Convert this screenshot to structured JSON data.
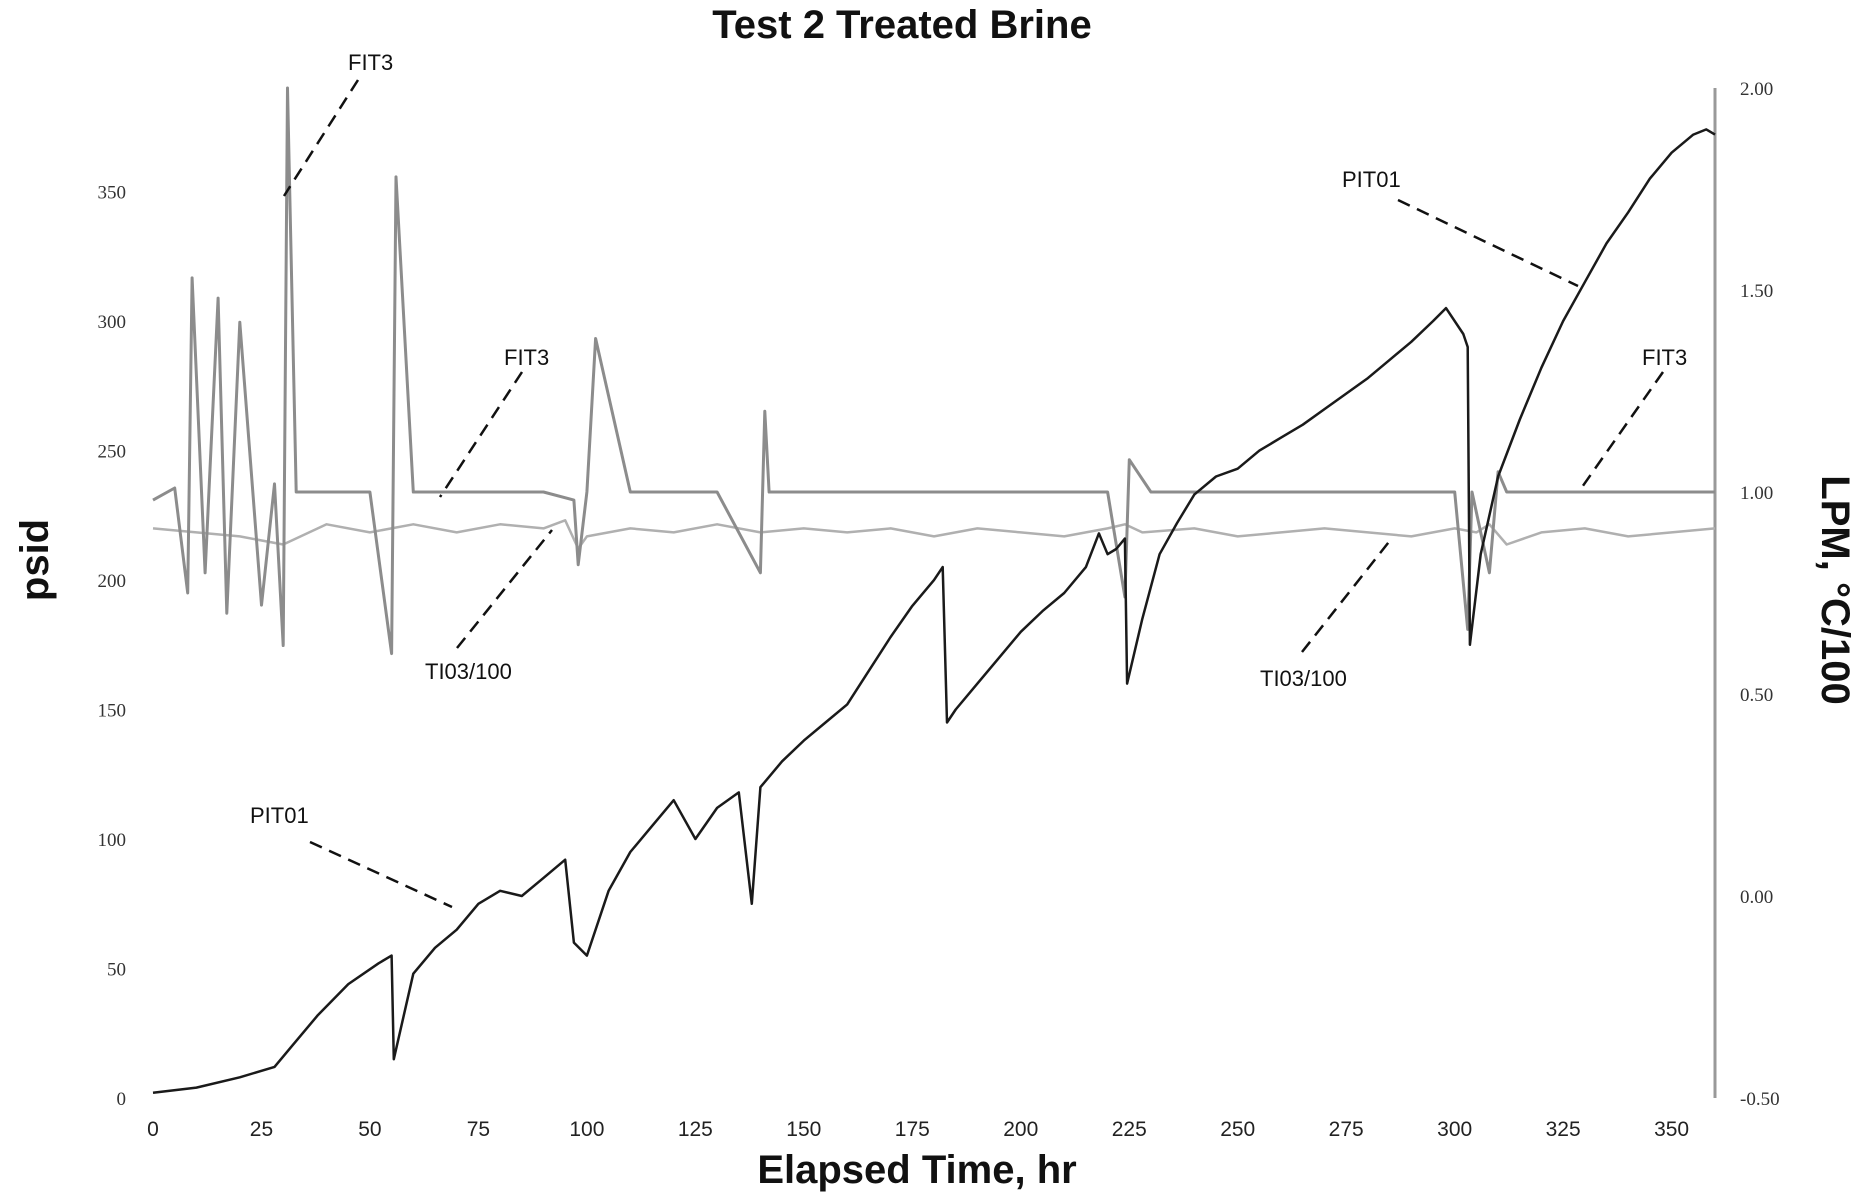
{
  "chart_data": {
    "type": "line",
    "title": "Test 2 Treated Brine",
    "xlabel": "Elapsed Time, hr",
    "ylabel_left": "psid",
    "ylabel_right": "LPM, °C/100",
    "xlim": [
      0,
      360
    ],
    "ylim_left": [
      0,
      390
    ],
    "ylim_right": [
      -0.5,
      2.0
    ],
    "x_ticks": [
      "0",
      "25",
      "50",
      "75",
      "100",
      "125",
      "150",
      "175",
      "200",
      "225",
      "250",
      "275",
      "300",
      "325",
      "350"
    ],
    "y_left_ticks": [
      "0",
      "50",
      "100",
      "150",
      "200",
      "250",
      "300",
      "350"
    ],
    "y_right_ticks": [
      "-0.50",
      "0.00",
      "0.50",
      "1.00",
      "1.50",
      "2.00"
    ],
    "grid": false,
    "colors": {
      "PIT01": "#1a1a1a",
      "FIT3": "#8c8c8c",
      "TI03/100": "#b0b0b0"
    },
    "series": [
      {
        "name": "PIT01",
        "axis": "left",
        "x": [
          0,
          10,
          20,
          28,
          32,
          38,
          45,
          52,
          55,
          55.5,
          60,
          65,
          70,
          75,
          80,
          85,
          90,
          95,
          97,
          100,
          105,
          110,
          115,
          120,
          125,
          130,
          135,
          138,
          140,
          145,
          150,
          155,
          160,
          165,
          170,
          175,
          180,
          182,
          183,
          185,
          190,
          195,
          200,
          205,
          210,
          215,
          218,
          220,
          222,
          224,
          224.5,
          228,
          232,
          236,
          240,
          245,
          250,
          255,
          260,
          265,
          270,
          275,
          280,
          285,
          290,
          295,
          298,
          302,
          303,
          303.5,
          306,
          310,
          315,
          320,
          325,
          330,
          335,
          340,
          345,
          350,
          355,
          358,
          360
        ],
        "y": [
          2,
          4,
          8,
          12,
          20,
          32,
          44,
          52,
          55,
          15,
          48,
          58,
          65,
          75,
          80,
          78,
          85,
          92,
          60,
          55,
          80,
          95,
          105,
          115,
          100,
          112,
          118,
          75,
          120,
          130,
          138,
          145,
          152,
          165,
          178,
          190,
          200,
          205,
          145,
          150,
          160,
          170,
          180,
          188,
          195,
          205,
          218,
          210,
          212,
          216,
          160,
          185,
          210,
          222,
          233,
          240,
          243,
          250,
          255,
          260,
          266,
          272,
          278,
          285,
          292,
          300,
          305,
          295,
          290,
          175,
          210,
          240,
          262,
          282,
          300,
          315,
          330,
          342,
          355,
          365,
          372,
          374,
          372
        ]
      },
      {
        "name": "FIT3",
        "axis": "right",
        "x": [
          0,
          5,
          8,
          9,
          12,
          15,
          17,
          20,
          25,
          28,
          30,
          31,
          33,
          40,
          50,
          55,
          56,
          60,
          70,
          80,
          90,
          97,
          98,
          100,
          102,
          110,
          120,
          130,
          140,
          141,
          142,
          150,
          160,
          170,
          180,
          190,
          200,
          210,
          220,
          224,
          225,
          230,
          240,
          250,
          260,
          265,
          270,
          280,
          290,
          300,
          303,
          304,
          308,
          310,
          312,
          320,
          330,
          340,
          350,
          360
        ],
        "y": [
          0.98,
          1.01,
          0.75,
          1.53,
          0.8,
          1.48,
          0.7,
          1.42,
          0.72,
          1.02,
          0.62,
          2.0,
          1.0,
          1.0,
          1.0,
          0.6,
          1.78,
          1.0,
          1.0,
          1.0,
          1.0,
          0.98,
          0.82,
          1.0,
          1.38,
          1.0,
          1.0,
          1.0,
          0.8,
          1.2,
          1.0,
          1.0,
          1.0,
          1.0,
          1.0,
          1.0,
          1.0,
          1.0,
          1.0,
          0.74,
          1.08,
          1.0,
          1.0,
          1.0,
          1.0,
          1.0,
          1.0,
          1.0,
          1.0,
          1.0,
          0.66,
          1.0,
          0.8,
          1.05,
          1.0,
          1.0,
          1.0,
          1.0,
          1.0,
          1.0
        ]
      },
      {
        "name": "TI03/100",
        "axis": "right",
        "x": [
          0,
          20,
          30,
          40,
          50,
          60,
          70,
          80,
          90,
          95,
          98,
          100,
          110,
          120,
          130,
          140,
          150,
          160,
          170,
          180,
          190,
          200,
          210,
          220,
          224,
          228,
          240,
          250,
          260,
          270,
          280,
          290,
          300,
          305,
          308,
          312,
          320,
          330,
          340,
          350,
          360
        ],
        "y": [
          0.91,
          0.89,
          0.87,
          0.92,
          0.9,
          0.92,
          0.9,
          0.92,
          0.91,
          0.93,
          0.86,
          0.89,
          0.91,
          0.9,
          0.92,
          0.9,
          0.91,
          0.9,
          0.91,
          0.89,
          0.91,
          0.9,
          0.89,
          0.91,
          0.92,
          0.9,
          0.91,
          0.89,
          0.9,
          0.91,
          0.9,
          0.89,
          0.91,
          0.9,
          0.92,
          0.87,
          0.9,
          0.91,
          0.89,
          0.9,
          0.91
        ]
      }
    ],
    "annotations": [
      "FIT3",
      "FIT3",
      "FIT3",
      "PIT01",
      "PIT01",
      "TI03/100",
      "TI03/100"
    ]
  }
}
